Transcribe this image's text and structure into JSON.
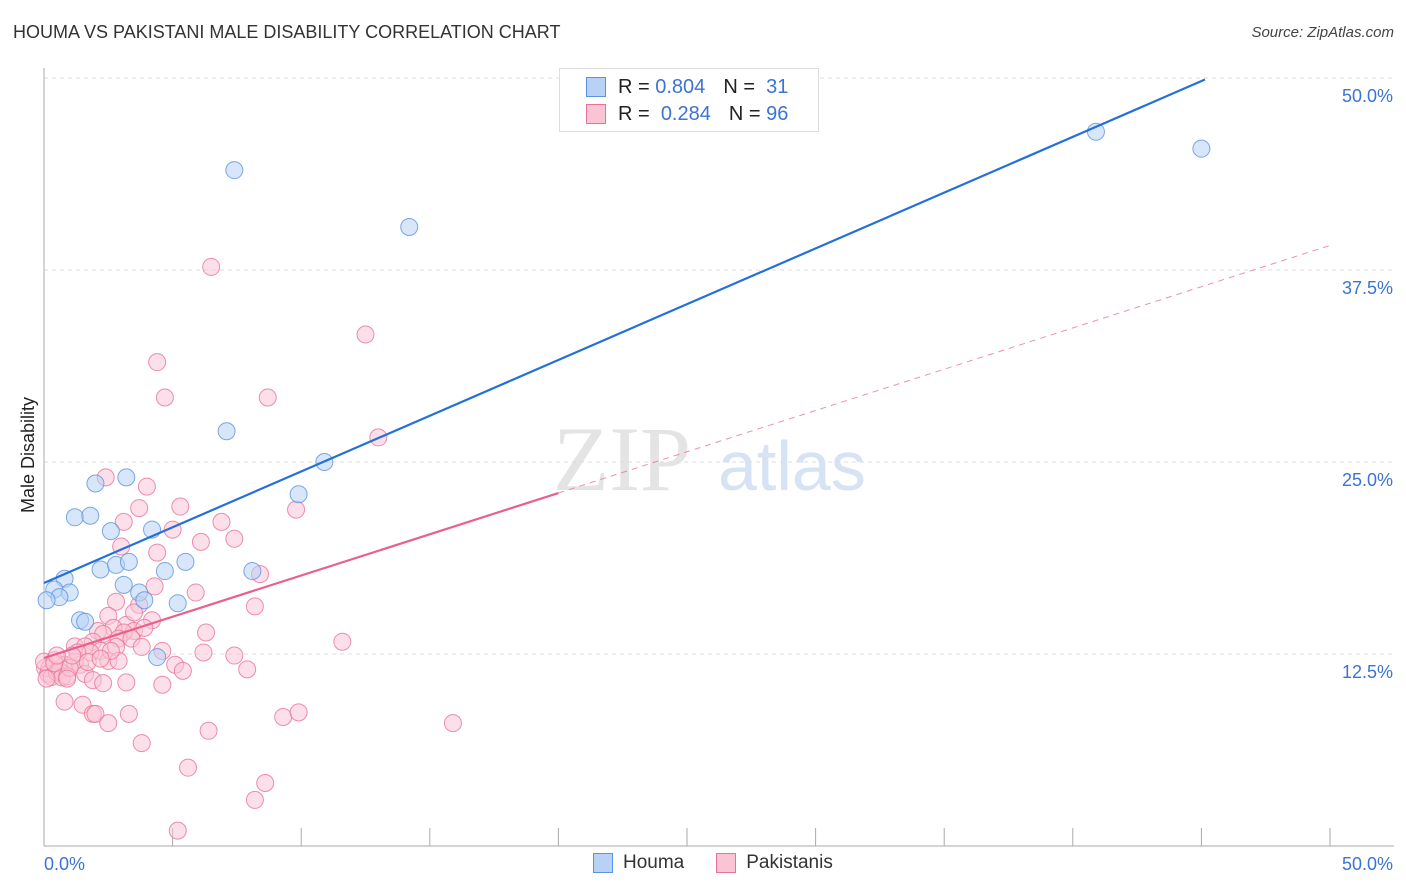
{
  "title": "HOUMA VS PAKISTANI MALE DISABILITY CORRELATION CHART",
  "source": "Source: ZipAtlas.com",
  "watermark": "ZIPatlas",
  "colors": {
    "houma": "#5b93e0",
    "houma_fill": "#b8d2f5",
    "pak": "#e8739a",
    "pak_fill": "#f9c5d5",
    "blue_line": "#2470d8",
    "pink_line": "#e8608e",
    "tick": "#3b74d4"
  },
  "legend": [
    {
      "r_label": "R =",
      "r": "0.804",
      "n_label": "N =",
      "n": "31"
    },
    {
      "r_label": "R =",
      "r": "0.284",
      "n_label": "N =",
      "n": "96"
    }
  ],
  "chart_data": {
    "type": "scatter",
    "title": "HOUMA VS PAKISTANI MALE DISABILITY CORRELATION CHART",
    "xlabel": "",
    "ylabel": "Male Disability",
    "xlim": [
      0,
      50
    ],
    "ylim": [
      0,
      50
    ],
    "x_tick_labels": [
      "0.0%",
      "50.0%"
    ],
    "y_ticks": [
      12.5,
      25,
      37.5,
      50
    ],
    "y_tick_labels": [
      "12.5%",
      "25.0%",
      "37.5%",
      "50.0%"
    ],
    "grid": true,
    "legend_position": "top-center",
    "series": [
      {
        "name": "Houma",
        "points": [
          [
            7.4,
            44.0
          ],
          [
            14.2,
            40.3
          ],
          [
            40.9,
            46.5
          ],
          [
            45.0,
            45.4
          ],
          [
            7.1,
            27.0
          ],
          [
            10.9,
            25.0
          ],
          [
            9.9,
            22.9
          ],
          [
            3.2,
            24.0
          ],
          [
            2.0,
            23.6
          ],
          [
            1.2,
            21.4
          ],
          [
            1.8,
            21.5
          ],
          [
            2.6,
            20.5
          ],
          [
            4.2,
            20.6
          ],
          [
            5.5,
            18.5
          ],
          [
            4.7,
            17.9
          ],
          [
            2.2,
            18.0
          ],
          [
            2.8,
            18.3
          ],
          [
            3.3,
            18.5
          ],
          [
            8.1,
            17.9
          ],
          [
            0.8,
            17.4
          ],
          [
            0.4,
            16.7
          ],
          [
            1.0,
            16.5
          ],
          [
            0.6,
            16.2
          ],
          [
            3.1,
            17.0
          ],
          [
            3.7,
            16.5
          ],
          [
            3.9,
            16.0
          ],
          [
            5.2,
            15.8
          ],
          [
            1.4,
            14.7
          ],
          [
            1.6,
            14.6
          ],
          [
            4.4,
            12.3
          ],
          [
            0.1,
            16.0
          ]
        ]
      },
      {
        "name": "Pakistanis",
        "points": [
          [
            6.5,
            37.7
          ],
          [
            12.5,
            33.3
          ],
          [
            4.4,
            31.5
          ],
          [
            4.7,
            29.2
          ],
          [
            8.7,
            29.2
          ],
          [
            13.0,
            26.6
          ],
          [
            2.4,
            24.0
          ],
          [
            4.0,
            23.4
          ],
          [
            3.7,
            22.0
          ],
          [
            5.3,
            22.1
          ],
          [
            9.8,
            21.9
          ],
          [
            3.1,
            21.1
          ],
          [
            6.9,
            21.1
          ],
          [
            5.0,
            20.6
          ],
          [
            7.4,
            20.0
          ],
          [
            6.1,
            19.8
          ],
          [
            3.0,
            19.5
          ],
          [
            4.4,
            19.1
          ],
          [
            8.4,
            17.7
          ],
          [
            4.3,
            16.9
          ],
          [
            5.9,
            16.5
          ],
          [
            2.8,
            15.9
          ],
          [
            3.7,
            15.7
          ],
          [
            8.2,
            15.6
          ],
          [
            2.5,
            14.98
          ],
          [
            4.2,
            14.7
          ],
          [
            3.2,
            14.4
          ],
          [
            2.7,
            14.2
          ],
          [
            6.3,
            13.9
          ],
          [
            2.1,
            14.0
          ],
          [
            3.5,
            14.0
          ],
          [
            3.9,
            14.2
          ],
          [
            3.1,
            13.9
          ],
          [
            2.3,
            13.8
          ],
          [
            2.9,
            13.5
          ],
          [
            1.9,
            13.3
          ],
          [
            3.4,
            13.5
          ],
          [
            1.2,
            13.0
          ],
          [
            1.6,
            13.0
          ],
          [
            11.6,
            13.3
          ],
          [
            3.8,
            12.96
          ],
          [
            4.6,
            12.7
          ],
          [
            6.2,
            12.6
          ],
          [
            7.4,
            12.4
          ],
          [
            2.2,
            12.7
          ],
          [
            2.8,
            12.96
          ],
          [
            1.8,
            12.6
          ],
          [
            0.4,
            12.1
          ],
          [
            0.8,
            11.8
          ],
          [
            1.2,
            12.0
          ],
          [
            1.4,
            11.8
          ],
          [
            2.5,
            12.05
          ],
          [
            2.9,
            12.05
          ],
          [
            5.1,
            11.8
          ],
          [
            5.4,
            11.4
          ],
          [
            7.9,
            11.5
          ],
          [
            0.04,
            11.6
          ],
          [
            0.2,
            11.55
          ],
          [
            0.16,
            11.2
          ],
          [
            0.3,
            11.0
          ],
          [
            0.5,
            11.3
          ],
          [
            0.6,
            11.4
          ],
          [
            0.7,
            10.98
          ],
          [
            0.9,
            11.05
          ],
          [
            1.0,
            11.6
          ],
          [
            1.6,
            11.2
          ],
          [
            1.9,
            10.8
          ],
          [
            2.3,
            10.6
          ],
          [
            3.2,
            10.65
          ],
          [
            4.6,
            10.5
          ],
          [
            0.8,
            9.4
          ],
          [
            1.5,
            9.2
          ],
          [
            1.9,
            8.6
          ],
          [
            2.0,
            8.6
          ],
          [
            3.3,
            8.6
          ],
          [
            9.3,
            8.4
          ],
          [
            9.9,
            8.7
          ],
          [
            15.9,
            8.0
          ],
          [
            2.5,
            8.0
          ],
          [
            6.4,
            7.5
          ],
          [
            3.8,
            6.7
          ],
          [
            5.6,
            5.1
          ],
          [
            8.6,
            4.1
          ],
          [
            8.2,
            3.0
          ],
          [
            5.2,
            1.0
          ],
          [
            0.0,
            12.0
          ],
          [
            0.1,
            10.9
          ],
          [
            0.4,
            11.9
          ],
          [
            0.9,
            10.9
          ],
          [
            1.3,
            12.6
          ],
          [
            2.6,
            12.7
          ],
          [
            1.7,
            11.98
          ],
          [
            1.1,
            12.4
          ],
          [
            0.5,
            12.4
          ],
          [
            2.2,
            12.2
          ],
          [
            3.5,
            15.2
          ]
        ]
      }
    ],
    "trend_lines": [
      {
        "series": "Houma",
        "from": [
          0,
          17.12
        ],
        "to": [
          45.14,
          49.9
        ],
        "style": "solid"
      },
      {
        "series": "Pakistanis",
        "from": [
          0,
          12.24
        ],
        "to": [
          20.0,
          22.98
        ],
        "style": "solid"
      },
      {
        "series": "Pakistanis",
        "from": [
          20.0,
          22.98
        ],
        "to": [
          50,
          39.1
        ],
        "style": "dashed"
      }
    ]
  }
}
